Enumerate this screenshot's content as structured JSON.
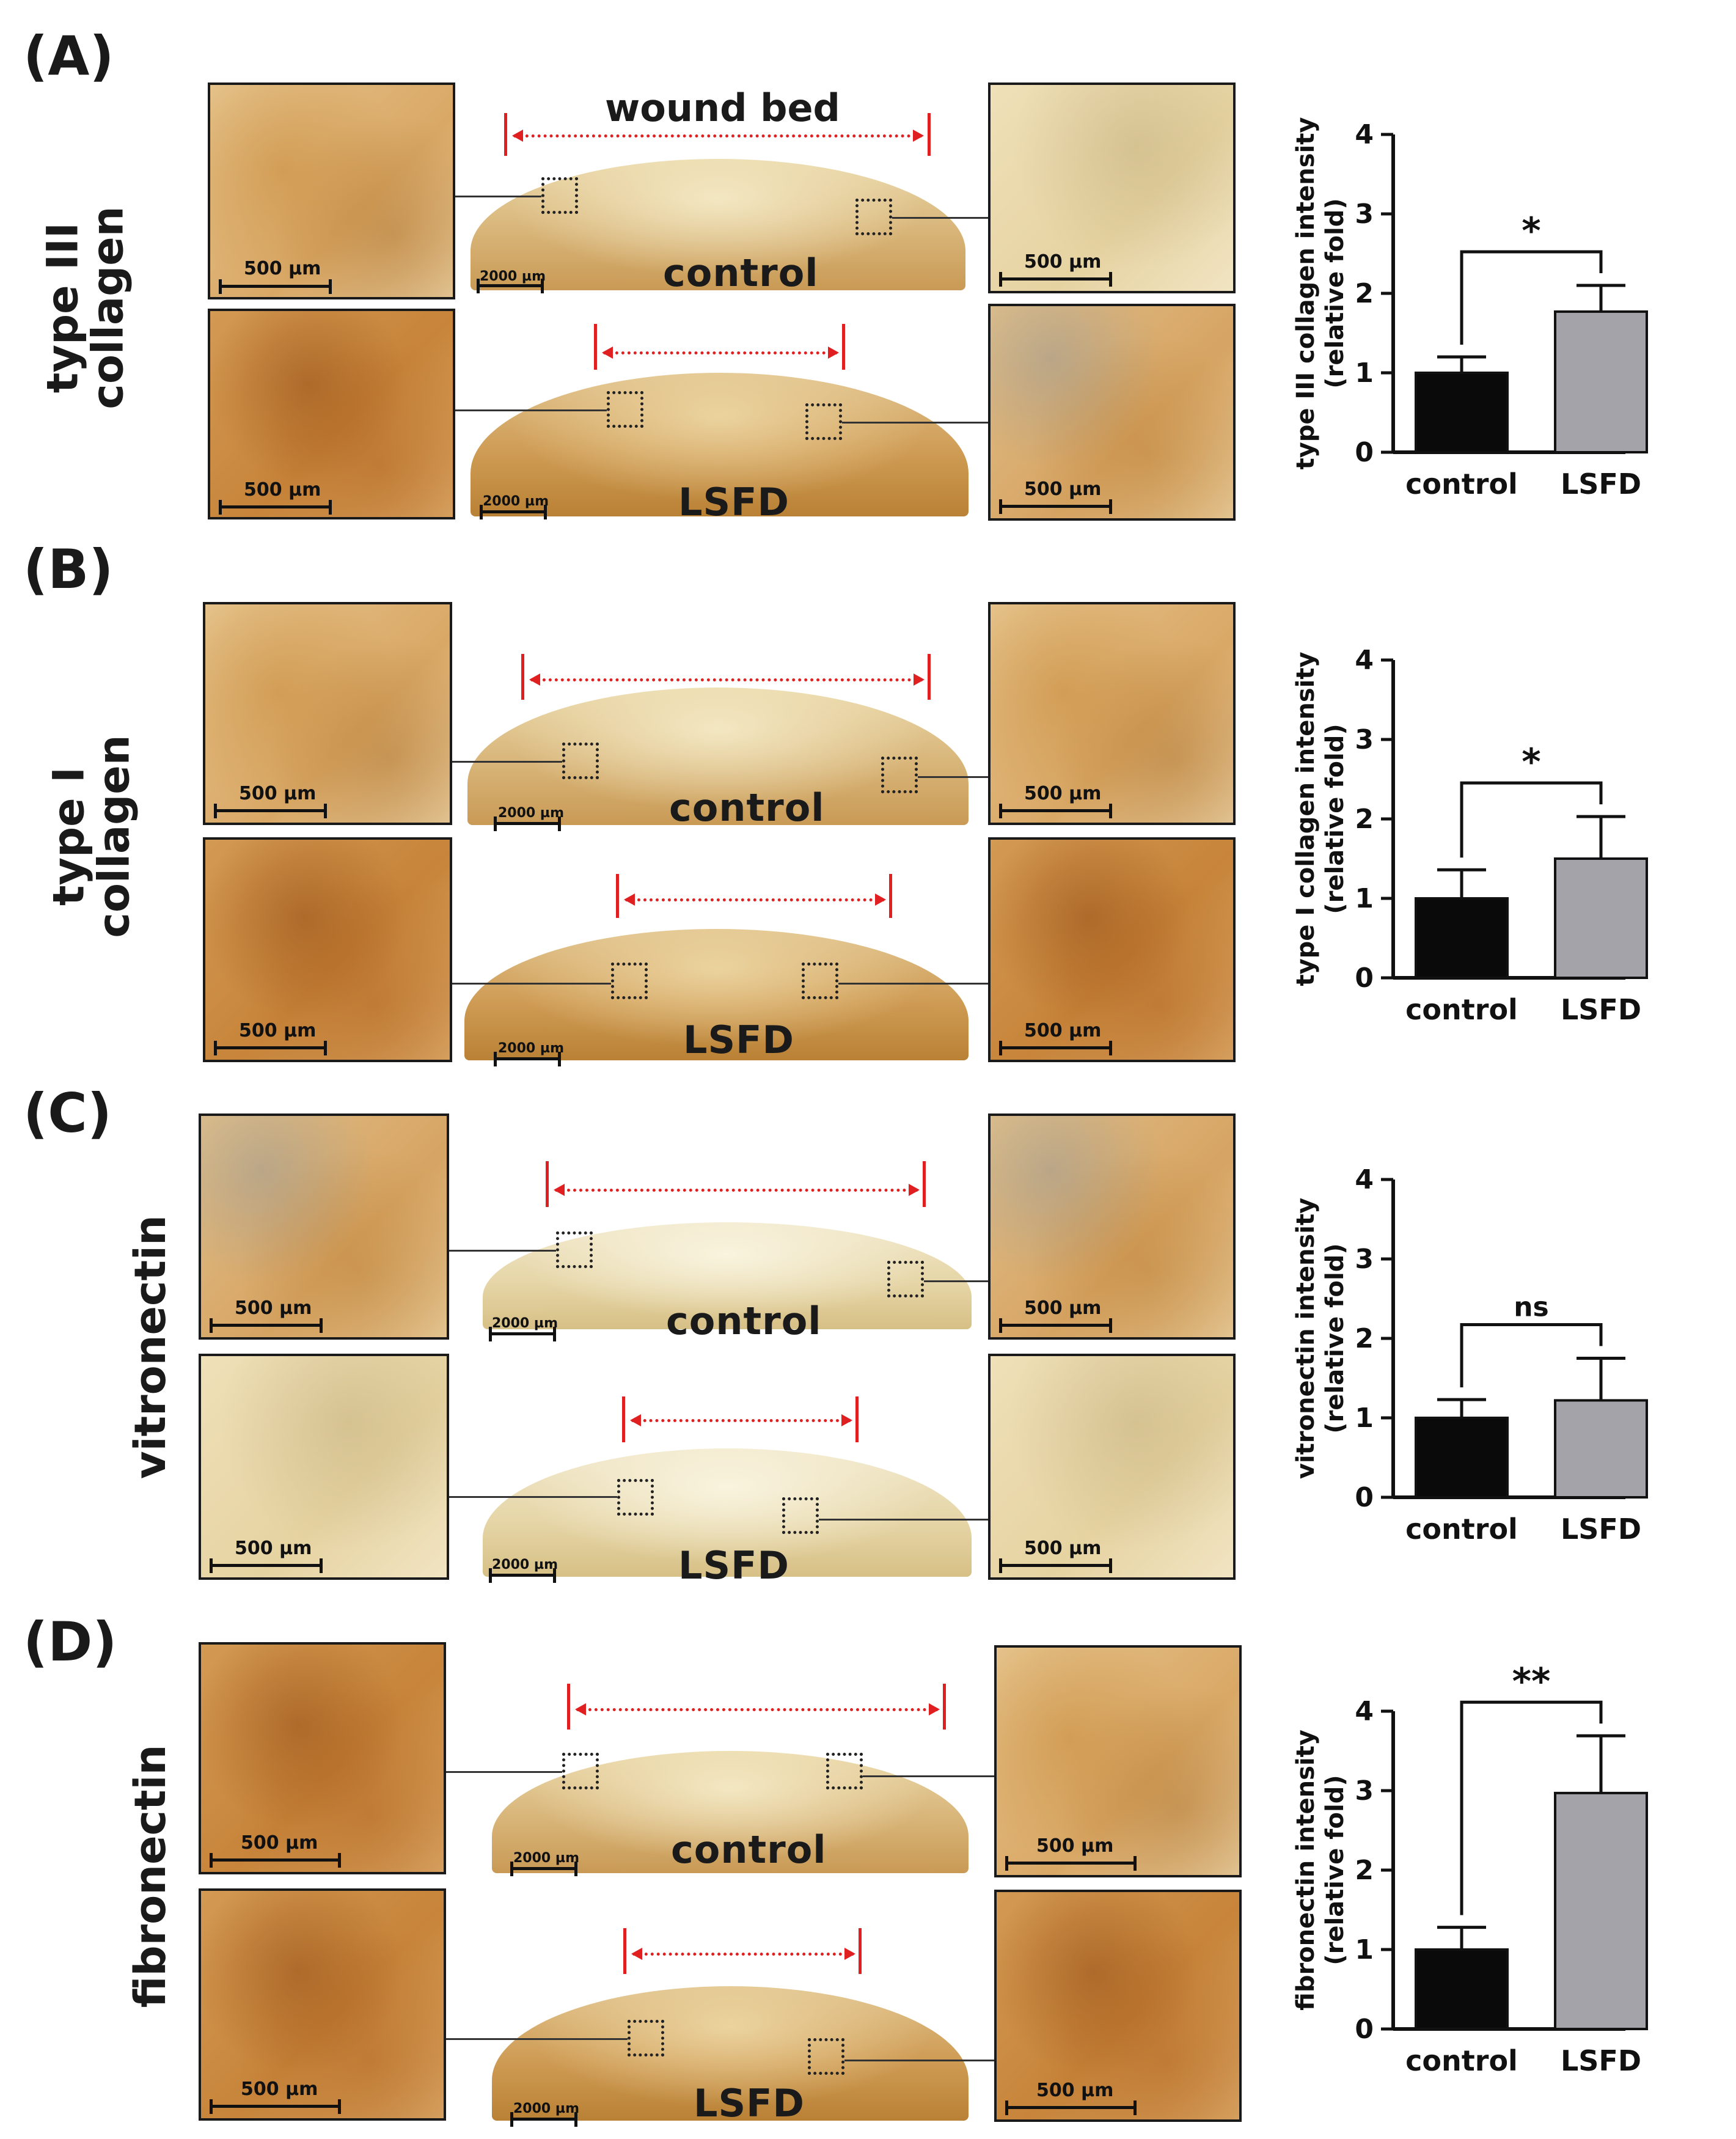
{
  "panels": [
    {
      "letter": "(A)",
      "row_label": "type III\ncollagen",
      "groups": [
        "control",
        "LSFD"
      ],
      "wound_label": "wound bed"
    },
    {
      "letter": "(B)",
      "row_label": "type I\ncollagen",
      "groups": [
        "control",
        "LSFD"
      ]
    },
    {
      "letter": "(C)",
      "row_label": "vitronectin",
      "groups": [
        "control",
        "LSFD"
      ]
    },
    {
      "letter": "(D)",
      "row_label": "fibronectin",
      "groups": [
        "control",
        "LSFD"
      ]
    }
  ],
  "scale": {
    "micro": "500 µm",
    "section": "2000 µm"
  },
  "colors": {
    "control_bar": "#0a0a0a",
    "lsfd_bar": "#a3a3a9",
    "arrow": "#e02020"
  },
  "chart_data": [
    {
      "type": "bar",
      "categories": [
        "control",
        "LSFD"
      ],
      "values": [
        1.0,
        1.77
      ],
      "errors": [
        0.2,
        0.33
      ],
      "ylabel": "type III collagen intensity\n(relative fold)",
      "ylim": [
        0,
        4
      ],
      "yticks": [
        0,
        1,
        2,
        3,
        4
      ],
      "significance": "*"
    },
    {
      "type": "bar",
      "categories": [
        "control",
        "LSFD"
      ],
      "values": [
        1.0,
        1.5
      ],
      "errors": [
        0.36,
        0.53
      ],
      "ylabel": "type I collagen intensity\n(relative fold)",
      "ylim": [
        0,
        4
      ],
      "yticks": [
        0,
        1,
        2,
        3,
        4
      ],
      "significance": "*"
    },
    {
      "type": "bar",
      "categories": [
        "control",
        "LSFD"
      ],
      "values": [
        1.0,
        1.22
      ],
      "errors": [
        0.23,
        0.53
      ],
      "ylabel": "vitronectin intensity\n(relative fold)",
      "ylim": [
        0,
        4
      ],
      "yticks": [
        0,
        1,
        2,
        3,
        4
      ],
      "significance": "ns"
    },
    {
      "type": "bar",
      "categories": [
        "control",
        "LSFD"
      ],
      "values": [
        1.0,
        2.97
      ],
      "errors": [
        0.28,
        0.72
      ],
      "ylabel": "fibronectin intensity\n(relative fold)",
      "ylim": [
        0,
        4
      ],
      "yticks": [
        0,
        1,
        2,
        3,
        4
      ],
      "significance": "**"
    }
  ]
}
